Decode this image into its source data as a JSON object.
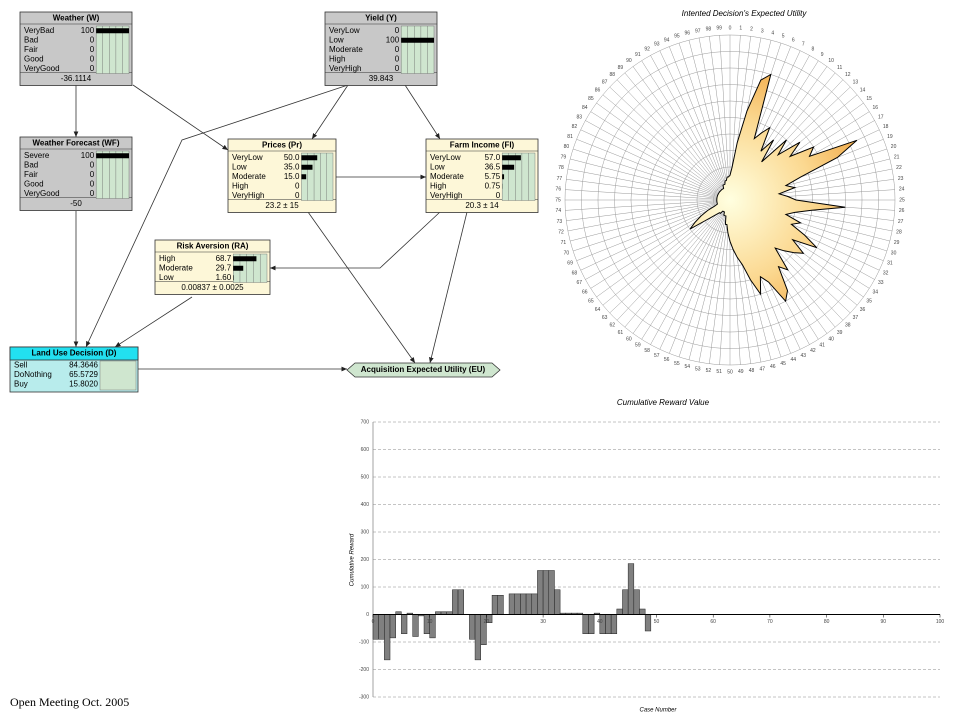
{
  "nodes": [
    {
      "label": "Weather (W)",
      "states": [
        "VeryBad",
        "Bad",
        "Fair",
        "Good",
        "VeryGood"
      ],
      "values": [
        100,
        0,
        0,
        0,
        0
      ],
      "footer": "-36.1114"
    },
    {
      "label": "Yield (Y)",
      "states": [
        "VeryLow",
        "Low",
        "Moderate",
        "High",
        "VeryHigh"
      ],
      "values": [
        0,
        100,
        0,
        0,
        0
      ],
      "footer": "39.843"
    },
    {
      "label": "Weather Forecast (WF)",
      "states": [
        "Severe",
        "Bad",
        "Fair",
        "Good",
        "VeryGood"
      ],
      "values": [
        100,
        0,
        0,
        0,
        0
      ],
      "footer": "-50"
    },
    {
      "label": "Prices (Pr)",
      "states": [
        "VeryLow",
        "Low",
        "Moderate",
        "High",
        "VeryHigh"
      ],
      "values": [
        50,
        35,
        15,
        0,
        0
      ],
      "value_labels": [
        "50.0",
        "35.0",
        "15.0",
        "0",
        "0"
      ],
      "footer": "23.2 ± 15"
    },
    {
      "label": "Farm Income (FI)",
      "states": [
        "VeryLow",
        "Low",
        "Moderate",
        "High",
        "VeryHigh"
      ],
      "values": [
        57,
        36.5,
        5.75,
        0.75,
        0
      ],
      "value_labels": [
        "57.0",
        "36.5",
        "5.75",
        "0.75",
        "0"
      ],
      "footer": "20.3 ± 14"
    },
    {
      "label": "Risk Aversion (RA)",
      "states": [
        "High",
        "Moderate",
        "Low"
      ],
      "values": [
        68.7,
        29.7,
        1.6
      ],
      "value_labels": [
        "68.7",
        "29.7",
        "1.60"
      ],
      "footer": "0.00837 ± 0.0025"
    }
  ],
  "decision": {
    "label": "Land Use Decision (D)",
    "states": [
      "Sell",
      "DoNothing",
      "Buy"
    ],
    "values": [
      84.3646,
      65.5729,
      15.802
    ],
    "value_labels": [
      "84.3646",
      "65.5729",
      "15.8020"
    ]
  },
  "utility": {
    "label": "Acquisition Expected Utility (EU)"
  },
  "chart_data": [
    {
      "type": "radar",
      "title": "Intented Decision's Expected Utility",
      "categories": [
        0,
        1,
        2,
        3,
        4,
        5,
        6,
        7,
        8,
        9,
        10,
        11,
        12,
        13,
        14,
        15,
        16,
        17,
        18,
        19,
        20,
        21,
        22,
        23,
        24,
        25,
        26,
        27,
        28,
        29,
        30,
        31,
        32,
        33,
        34,
        35,
        36,
        37,
        38,
        39,
        40,
        41,
        42,
        43,
        44,
        45,
        46,
        47,
        48,
        49,
        50,
        51,
        52,
        53,
        54,
        55,
        56,
        57,
        58,
        59,
        60,
        61,
        62,
        63,
        64,
        65,
        66,
        67,
        68,
        69,
        70,
        71,
        72,
        73,
        74,
        75,
        76,
        77,
        78,
        79,
        80,
        81,
        82,
        83,
        84,
        85,
        86,
        87,
        88,
        89,
        90,
        91,
        92,
        93,
        94,
        95,
        96,
        97,
        98,
        99
      ],
      "values": [
        15,
        20,
        35,
        55,
        75,
        80,
        40,
        45,
        50,
        35,
        45,
        30,
        50,
        40,
        55,
        45,
        60,
        55,
        85,
        70,
        45,
        35,
        40,
        30,
        35,
        40,
        70,
        50,
        40,
        35,
        45,
        40,
        50,
        60,
        45,
        55,
        50,
        45,
        40,
        55,
        50,
        65,
        70,
        55,
        50,
        60,
        50,
        40,
        35,
        30,
        25,
        20,
        15,
        15,
        10,
        10,
        10,
        8,
        8,
        8,
        10,
        10,
        12,
        15,
        20,
        30,
        25,
        20,
        15,
        10,
        8,
        8,
        8,
        8,
        8,
        8,
        8,
        8,
        8,
        8,
        8,
        8,
        8,
        8,
        8,
        8,
        8,
        8,
        8,
        8,
        8,
        8,
        8,
        10,
        10,
        10,
        12,
        12,
        14,
        14
      ],
      "rlim": [
        0,
        100
      ],
      "rticks": [
        10,
        20,
        30,
        40,
        50,
        60,
        70,
        80,
        90,
        100
      ],
      "color": "#f0a040"
    },
    {
      "type": "bar",
      "title": "Cumulative Reward Value",
      "xlabel": "Case Number",
      "ylabel": "Cumulative Reward",
      "x": [
        1,
        2,
        3,
        4,
        5,
        6,
        7,
        8,
        9,
        10,
        11,
        12,
        13,
        14,
        15,
        16,
        17,
        18,
        19,
        20,
        21,
        22,
        23,
        24,
        25,
        26,
        27,
        28,
        29,
        30,
        31,
        32,
        33,
        34,
        35,
        36,
        37,
        38,
        39,
        40,
        41,
        42,
        43,
        44,
        45,
        46,
        47,
        48,
        49,
        50,
        51,
        52,
        53,
        54,
        55,
        56,
        57,
        58,
        59,
        60,
        61,
        62,
        63,
        64,
        65,
        66,
        67,
        68,
        69,
        70,
        71,
        72,
        73,
        74,
        75,
        76,
        77,
        78,
        79,
        80,
        81,
        82,
        83,
        84,
        85,
        86,
        87,
        88,
        89,
        90,
        91,
        92,
        93,
        94,
        95,
        96,
        97,
        98,
        99,
        100
      ],
      "values": [
        -90,
        -90,
        -165,
        -85,
        10,
        -70,
        5,
        -80,
        -5,
        -70,
        -85,
        10,
        10,
        10,
        90,
        90,
        0,
        -90,
        -165,
        -110,
        -30,
        70,
        70,
        0,
        75,
        75,
        75,
        75,
        75,
        160,
        160,
        160,
        90,
        5,
        5,
        5,
        5,
        -70,
        -70,
        5,
        -70,
        -70,
        -70,
        20,
        90,
        185,
        90,
        20,
        -60,
        0,
        0,
        0,
        0,
        0,
        0,
        0,
        0,
        0,
        0,
        0,
        0,
        0,
        0,
        0,
        0,
        0,
        0,
        0,
        0,
        0,
        0,
        0,
        0,
        0,
        0,
        0,
        0,
        0,
        0,
        0,
        0,
        0,
        0,
        0,
        0,
        0,
        0,
        0,
        0,
        0,
        0,
        0,
        0,
        0,
        0,
        0,
        0,
        0,
        0,
        0
      ],
      "xlim": [
        0,
        100
      ],
      "xticks": [
        0,
        10,
        20,
        30,
        40,
        50,
        60,
        70,
        80,
        90,
        100
      ],
      "ylim": [
        -300,
        700
      ],
      "yticks": [
        -300,
        -200,
        -100,
        0,
        100,
        200,
        300,
        400,
        500,
        600,
        700
      ],
      "grid": true,
      "color": "#808080"
    }
  ],
  "footer": {
    "text": "Open Meeting Oct. 2005"
  }
}
